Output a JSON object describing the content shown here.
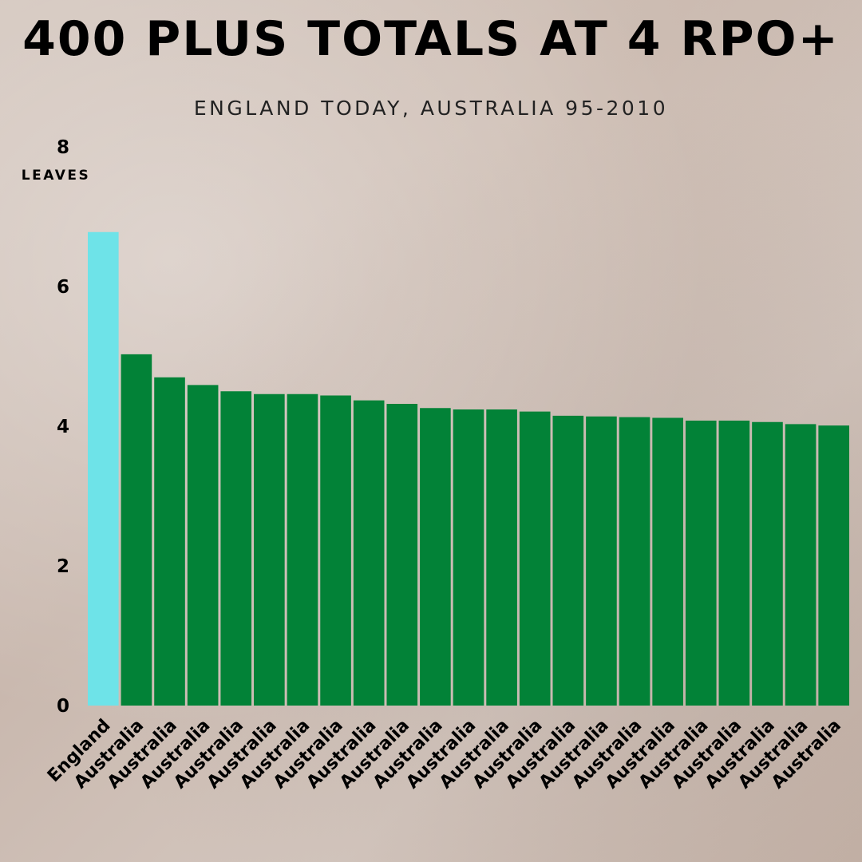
{
  "chart_data": {
    "type": "bar",
    "title": "400 PLUS TOTALS AT 4 RPO+",
    "subtitle": "ENGLAND TODAY, AUSTRALIA 95-2010",
    "ylabel": "LEAVES",
    "ylim": [
      0,
      8
    ],
    "yticks": [
      "0",
      "2",
      "4",
      "6",
      "8"
    ],
    "grid": false,
    "categories": [
      "England",
      "Australia",
      "Australia",
      "Australia",
      "Australia",
      "Australia",
      "Australia",
      "Australia",
      "Australia",
      "Australia",
      "Australia",
      "Australia",
      "Australia",
      "Australia",
      "Australia",
      "Australia",
      "Australia",
      "Australia",
      "Australia",
      "Australia",
      "Australia",
      "Australia",
      "Australia"
    ],
    "values": [
      6.78,
      5.03,
      4.7,
      4.59,
      4.5,
      4.46,
      4.46,
      4.44,
      4.37,
      4.32,
      4.26,
      4.24,
      4.24,
      4.21,
      4.15,
      4.14,
      4.13,
      4.12,
      4.08,
      4.08,
      4.06,
      4.03,
      4.01
    ],
    "colors": {
      "highlight": "#6ee3e8",
      "default": "#028237"
    }
  }
}
